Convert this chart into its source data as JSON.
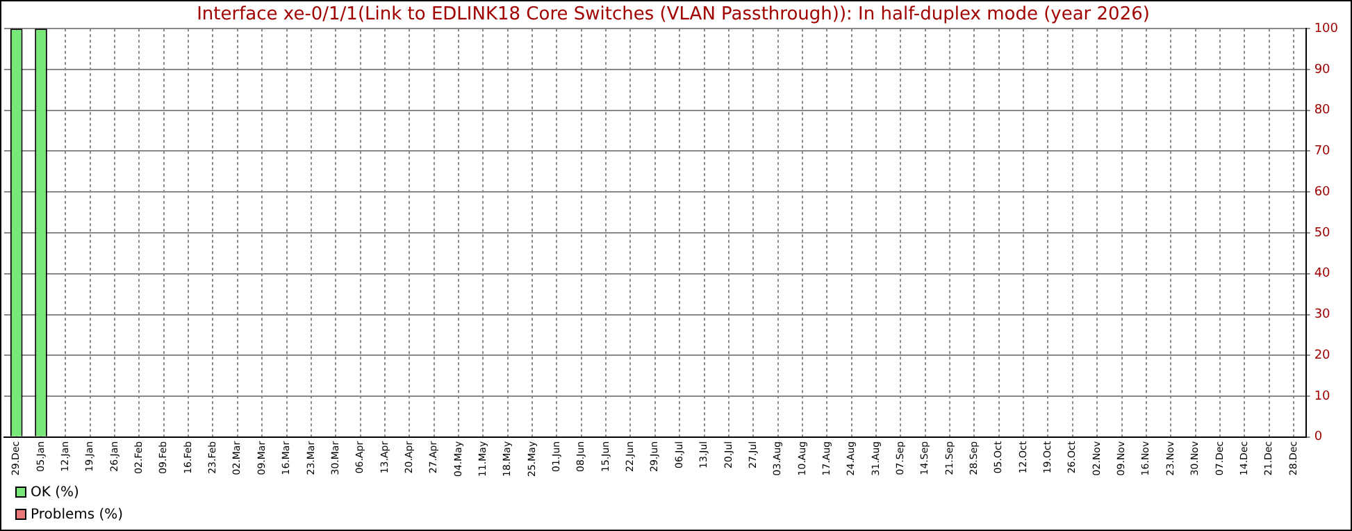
{
  "chart_data": {
    "type": "bar",
    "title": "Interface xe-0/1/1(Link to EDLINK18 Core Switches (VLAN Passthrough)): In half-duplex mode (year 2026)",
    "categories": [
      "29.Dec",
      "05.Jan",
      "12.Jan",
      "19.Jan",
      "26.Jan",
      "02.Feb",
      "09.Feb",
      "16.Feb",
      "23.Feb",
      "02.Mar",
      "09.Mar",
      "16.Mar",
      "23.Mar",
      "30.Mar",
      "06.Apr",
      "13.Apr",
      "20.Apr",
      "27.Apr",
      "04.May",
      "11.May",
      "18.May",
      "25.May",
      "01.Jun",
      "08.Jun",
      "15.Jun",
      "22.Jun",
      "29.Jun",
      "06.Jul",
      "13.Jul",
      "20.Jul",
      "27.Jul",
      "03.Aug",
      "10.Aug",
      "17.Aug",
      "24.Aug",
      "31.Aug",
      "07.Sep",
      "14.Sep",
      "21.Sep",
      "28.Sep",
      "05.Oct",
      "12.Oct",
      "19.Oct",
      "26.Oct",
      "02.Nov",
      "09.Nov",
      "16.Nov",
      "23.Nov",
      "30.Nov",
      "07.Dec",
      "14.Dec",
      "21.Dec",
      "28.Dec"
    ],
    "series": [
      {
        "name": "OK (%)",
        "color": "#77e877",
        "values": [
          100,
          100,
          null,
          null,
          null,
          null,
          null,
          null,
          null,
          null,
          null,
          null,
          null,
          null,
          null,
          null,
          null,
          null,
          null,
          null,
          null,
          null,
          null,
          null,
          null,
          null,
          null,
          null,
          null,
          null,
          null,
          null,
          null,
          null,
          null,
          null,
          null,
          null,
          null,
          null,
          null,
          null,
          null,
          null,
          null,
          null,
          null,
          null,
          null,
          null,
          null,
          null,
          null
        ]
      },
      {
        "name": "Problems (%)",
        "color": "#e87878",
        "values": [
          0,
          0,
          null,
          null,
          null,
          null,
          null,
          null,
          null,
          null,
          null,
          null,
          null,
          null,
          null,
          null,
          null,
          null,
          null,
          null,
          null,
          null,
          null,
          null,
          null,
          null,
          null,
          null,
          null,
          null,
          null,
          null,
          null,
          null,
          null,
          null,
          null,
          null,
          null,
          null,
          null,
          null,
          null,
          null,
          null,
          null,
          null,
          null,
          null,
          null,
          null,
          null,
          null
        ]
      }
    ],
    "stacked": true,
    "ylim": [
      0,
      100
    ],
    "yticks": [
      0,
      10,
      20,
      30,
      40,
      50,
      60,
      70,
      80,
      90,
      100
    ],
    "grid": true,
    "legend": "bottom left"
  }
}
